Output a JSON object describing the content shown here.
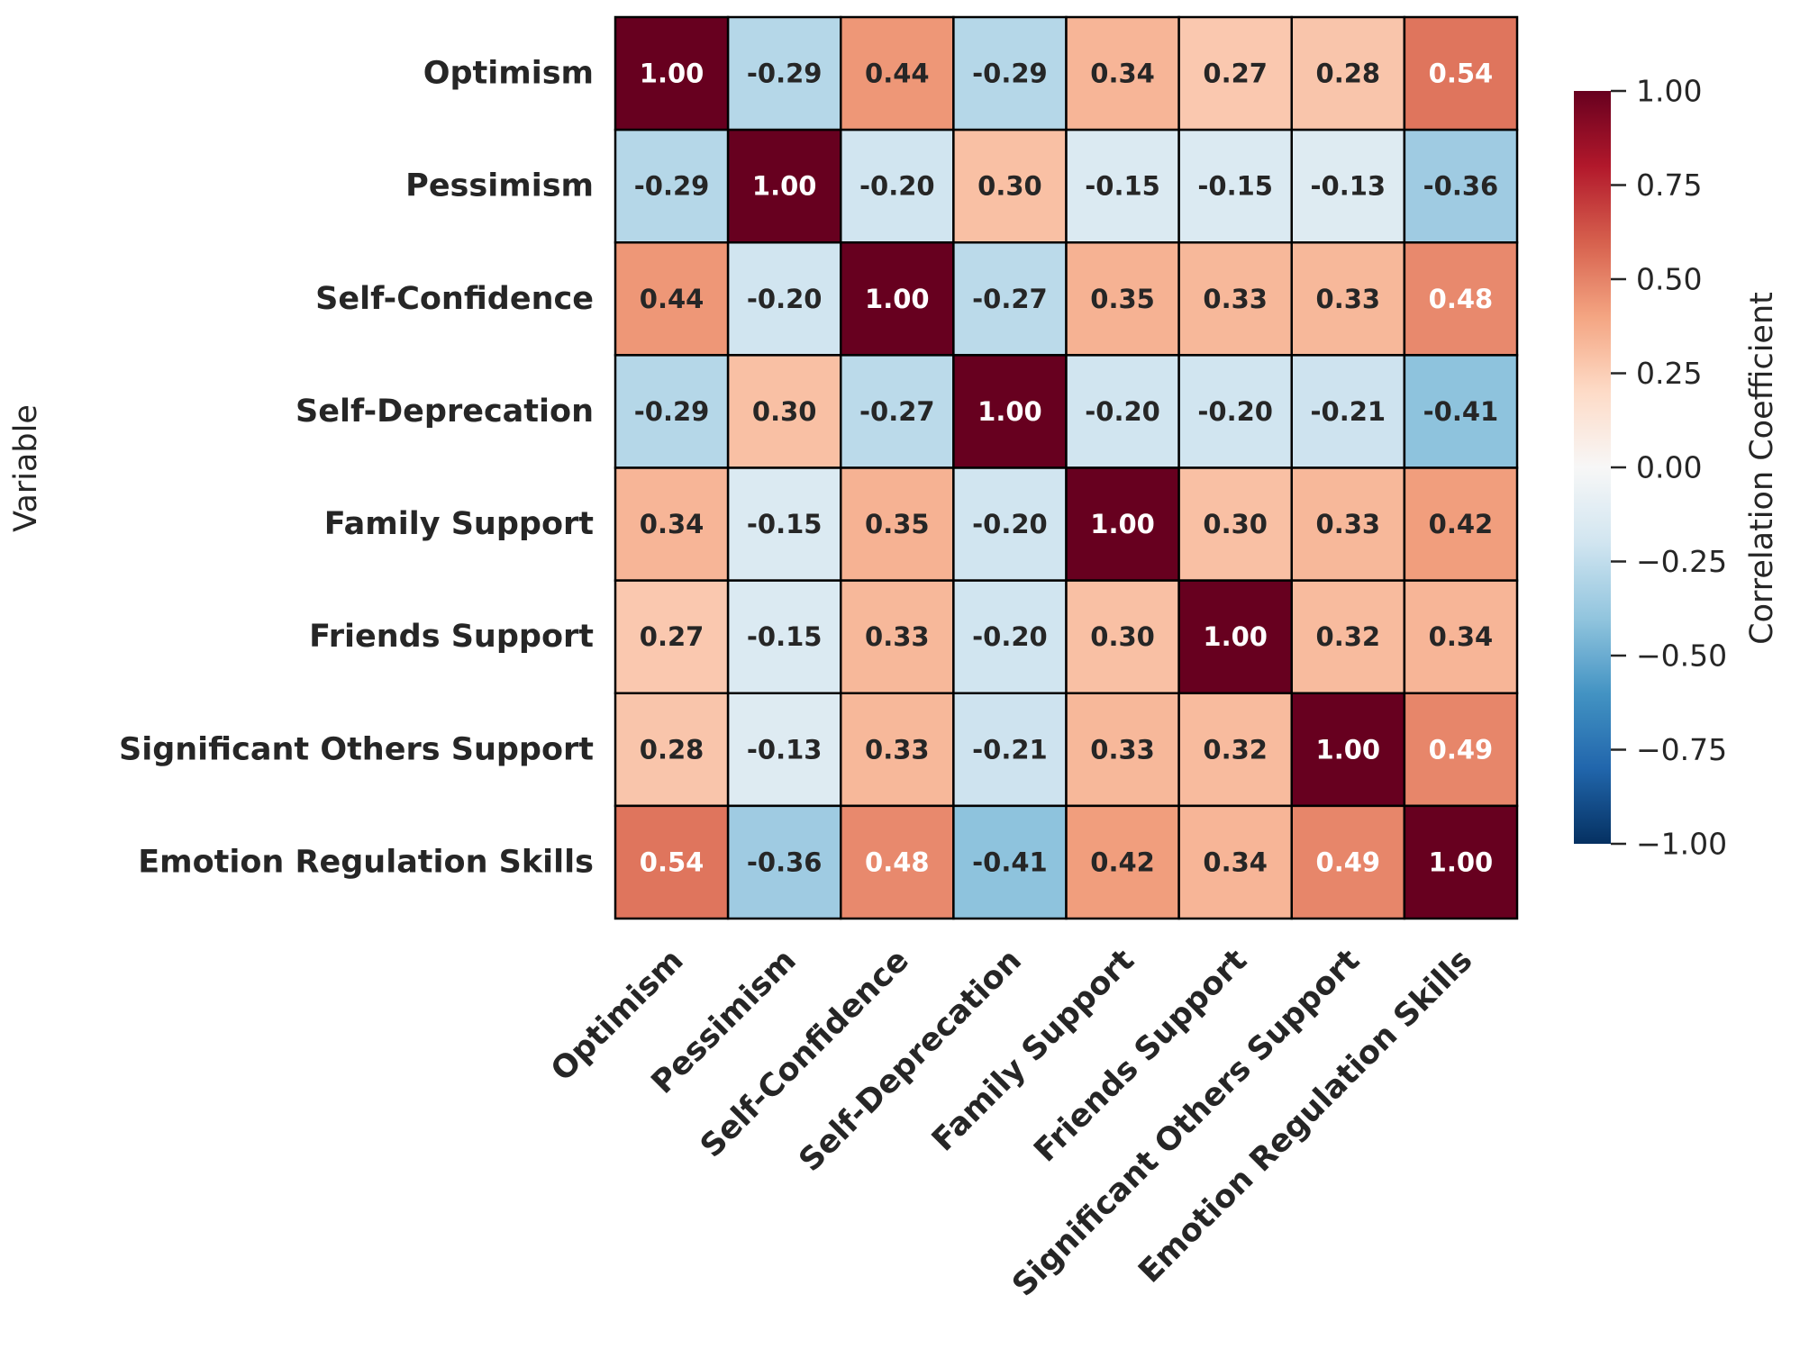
{
  "chart_data": {
    "type": "heatmap",
    "title": "",
    "xlabel": "",
    "ylabel": "Variable",
    "variables": [
      "Optimism",
      "Pessimism",
      "Self-Confidence",
      "Self-Deprecation",
      "Family Support",
      "Friends Support",
      "Significant Others Support",
      "Emotion Regulation Skills"
    ],
    "matrix": [
      [
        1.0,
        -0.29,
        0.44,
        -0.29,
        0.34,
        0.27,
        0.28,
        0.54
      ],
      [
        -0.29,
        1.0,
        -0.2,
        0.3,
        -0.15,
        -0.15,
        -0.13,
        -0.36
      ],
      [
        0.44,
        -0.2,
        1.0,
        -0.27,
        0.35,
        0.33,
        0.33,
        0.48
      ],
      [
        -0.29,
        0.3,
        -0.27,
        1.0,
        -0.2,
        -0.2,
        -0.21,
        -0.41
      ],
      [
        0.34,
        -0.15,
        0.35,
        -0.2,
        1.0,
        0.3,
        0.33,
        0.42
      ],
      [
        0.27,
        -0.15,
        0.33,
        -0.2,
        0.3,
        1.0,
        0.32,
        0.34
      ],
      [
        0.28,
        -0.13,
        0.33,
        -0.21,
        0.33,
        0.32,
        1.0,
        0.49
      ],
      [
        0.54,
        -0.36,
        0.48,
        -0.41,
        0.42,
        0.34,
        0.49,
        1.0
      ]
    ],
    "annotation_format": "0.00",
    "colormap": "RdBu_r",
    "vmin": -1.0,
    "vmax": 1.0,
    "colorbar": {
      "label": "Correlation Coefficient",
      "ticks": [
        1.0,
        0.75,
        0.5,
        0.25,
        0.0,
        -0.25,
        -0.5,
        -0.75,
        -1.0
      ],
      "tick_labels": [
        "1.00",
        "0.75",
        "0.50",
        "0.25",
        "0.00",
        "−0.25",
        "−0.50",
        "−0.75",
        "−1.00"
      ],
      "placement": "right"
    },
    "xtick_rotation_deg": 45,
    "cell_border_color": "#000000",
    "text_color_dark": "#262626",
    "text_color_light": "#ffffff",
    "grid": false
  }
}
